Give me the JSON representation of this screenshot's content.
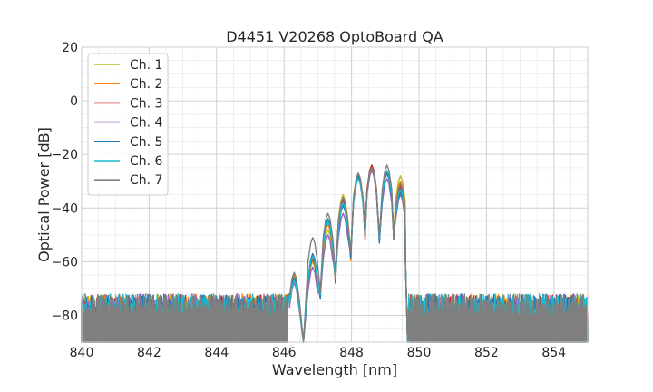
{
  "chart_data": {
    "type": "line",
    "title": "D4451 V20268 OptoBoard QA",
    "xlabel": "Wavelength [nm]",
    "ylabel": "Optical Power [dB]",
    "xlim": [
      840,
      855
    ],
    "ylim": [
      -90,
      20
    ],
    "x_ticks": [
      840,
      842,
      844,
      846,
      848,
      850,
      852,
      854
    ],
    "x_tick_labels": [
      "840",
      "842",
      "844",
      "846",
      "848",
      "850",
      "852",
      "854"
    ],
    "y_ticks": [
      20,
      0,
      -20,
      -40,
      -60,
      -80
    ],
    "y_tick_labels": [
      "20",
      "0",
      "−20",
      "−40",
      "−60",
      "−80"
    ],
    "grid": true,
    "minor_grid": true,
    "legend_position": "top-left",
    "noise_floor": {
      "x_range": [
        840,
        846.5
      ],
      "x_range_right": [
        849.7,
        855
      ],
      "level_min": -90,
      "level_max": -72
    },
    "series": [
      {
        "name": "Ch. 1",
        "color": "#bcbd22",
        "peaks": [
          [
            846.3,
            -66
          ],
          [
            846.85,
            -60
          ],
          [
            847.3,
            -48
          ],
          [
            847.75,
            -35
          ],
          [
            848.2,
            -27
          ],
          [
            848.6,
            -25
          ],
          [
            849.05,
            -27
          ],
          [
            849.45,
            -28
          ]
        ]
      },
      {
        "name": "Ch. 2",
        "color": "#ff7f0e",
        "peaks": [
          [
            846.3,
            -65
          ],
          [
            846.85,
            -58
          ],
          [
            847.3,
            -46
          ],
          [
            847.75,
            -36
          ],
          [
            848.2,
            -27
          ],
          [
            848.6,
            -24
          ],
          [
            849.05,
            -26
          ],
          [
            849.45,
            -30
          ]
        ]
      },
      {
        "name": "Ch. 3",
        "color": "#d62728",
        "peaks": [
          [
            846.3,
            -67
          ],
          [
            846.85,
            -59
          ],
          [
            847.3,
            -45
          ],
          [
            847.75,
            -37
          ],
          [
            848.2,
            -28
          ],
          [
            848.6,
            -24
          ],
          [
            849.05,
            -27
          ],
          [
            849.45,
            -32
          ]
        ]
      },
      {
        "name": "Ch. 4",
        "color": "#9467bd",
        "peaks": [
          [
            846.3,
            -68
          ],
          [
            846.85,
            -62
          ],
          [
            847.3,
            -50
          ],
          [
            847.75,
            -42
          ],
          [
            848.2,
            -29
          ],
          [
            848.6,
            -26
          ],
          [
            849.05,
            -29
          ],
          [
            849.45,
            -35
          ]
        ]
      },
      {
        "name": "Ch. 5",
        "color": "#1f77b4",
        "peaks": [
          [
            846.3,
            -66
          ],
          [
            846.85,
            -57
          ],
          [
            847.3,
            -44
          ],
          [
            847.75,
            -39
          ],
          [
            848.2,
            -28
          ],
          [
            848.6,
            -25
          ],
          [
            849.05,
            -27
          ],
          [
            849.45,
            -34
          ]
        ]
      },
      {
        "name": "Ch. 6",
        "color": "#17becf",
        "peaks": [
          [
            846.3,
            -67
          ],
          [
            846.85,
            -58
          ],
          [
            847.3,
            -45
          ],
          [
            847.75,
            -38
          ],
          [
            848.2,
            -29
          ],
          [
            848.6,
            -25
          ],
          [
            849.05,
            -26
          ],
          [
            849.45,
            -33
          ]
        ]
      },
      {
        "name": "Ch. 7",
        "color": "#7f7f7f",
        "peaks": [
          [
            846.3,
            -64
          ],
          [
            846.85,
            -51
          ],
          [
            847.3,
            -42
          ],
          [
            847.75,
            -36
          ],
          [
            848.2,
            -27
          ],
          [
            848.6,
            -25
          ],
          [
            849.05,
            -24
          ],
          [
            849.45,
            -31
          ]
        ]
      }
    ]
  }
}
